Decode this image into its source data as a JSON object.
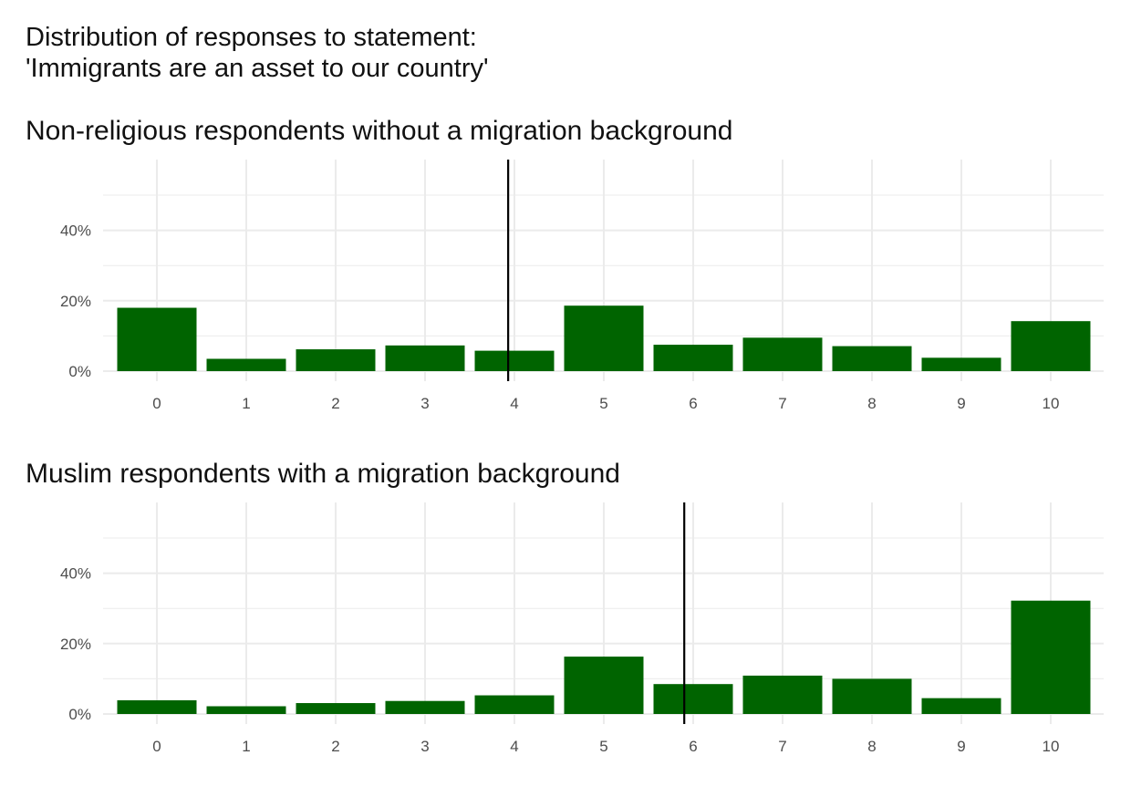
{
  "title": {
    "line1": "Distribution of responses to statement:",
    "line2": "'Immigrants are an asset to our country'"
  },
  "colors": {
    "bar": "#006400",
    "grid": "#ebebeb",
    "reference_line": "#000000",
    "tick_text": "#4d4d4d"
  },
  "chart_data": [
    {
      "type": "bar",
      "subtitle": "Non-religious respondents without a migration background",
      "categories": [
        "0",
        "1",
        "2",
        "3",
        "4",
        "5",
        "6",
        "7",
        "8",
        "9",
        "10"
      ],
      "values": [
        18,
        3.5,
        6.2,
        7.3,
        5.8,
        18.6,
        7.5,
        9.5,
        7.1,
        3.8,
        14.2
      ],
      "y_unit": "percent",
      "ylim": [
        0,
        60
      ],
      "y_ticks": [
        "0%",
        "20%",
        "40%"
      ],
      "y_tick_values": [
        0,
        20,
        40
      ],
      "reference_line_x": 3.93,
      "grid": true,
      "xlabel": "",
      "ylabel": ""
    },
    {
      "type": "bar",
      "subtitle": "Muslim respondents with a migration background",
      "categories": [
        "0",
        "1",
        "2",
        "3",
        "4",
        "5",
        "6",
        "7",
        "8",
        "9",
        "10"
      ],
      "values": [
        3.9,
        2.2,
        3.1,
        3.7,
        5.3,
        16.3,
        8.5,
        10.9,
        10,
        4.5,
        32.2
      ],
      "y_unit": "percent",
      "ylim": [
        0,
        60
      ],
      "y_ticks": [
        "0%",
        "20%",
        "40%"
      ],
      "y_tick_values": [
        0,
        20,
        40
      ],
      "reference_line_x": 5.9,
      "grid": true,
      "xlabel": "",
      "ylabel": ""
    }
  ]
}
